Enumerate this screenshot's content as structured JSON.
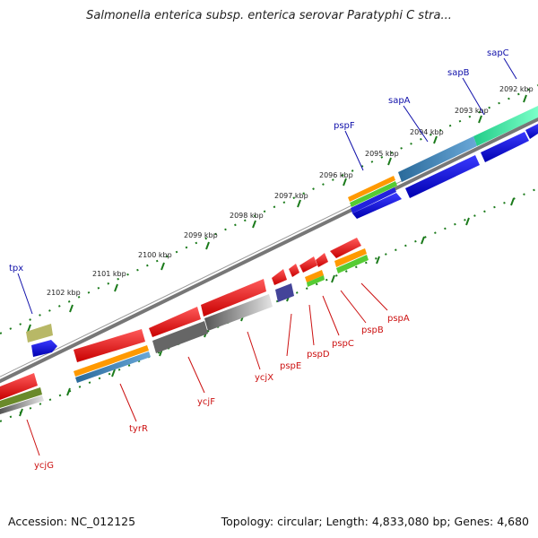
{
  "header": {
    "title": "Salmonella enterica subsp. enterica serovar Paratyphi C stra..."
  },
  "footer": {
    "accession": "Accession: NC_012125",
    "summary": "Topology: circular; Length: 4,833,080 bp; Genes: 4,680"
  },
  "scale_labels": [
    "2092 kbp",
    "2093 kbp",
    "2094 kbp",
    "2095 kbp",
    "2096 kbp",
    "2097 kbp",
    "2098 kbp",
    "2099 kbp",
    "2100 kbp",
    "2101 kbp",
    "2102 kbp"
  ],
  "genes_top": [
    "sapC",
    "sapB",
    "sapA",
    "pspF",
    "tpx"
  ],
  "genes_bottom": [
    "pspA",
    "pspB",
    "pspC",
    "pspD",
    "pspE",
    "ycjX",
    "ycjF",
    "tyrR",
    "ycjG"
  ],
  "colors": {
    "forward": "#0000ee",
    "reverse": "#ee0000",
    "backbone": "#777777",
    "tick": "#1a7a1a",
    "label_top": "#1010aa",
    "label_bottom": "#cc1111"
  }
}
